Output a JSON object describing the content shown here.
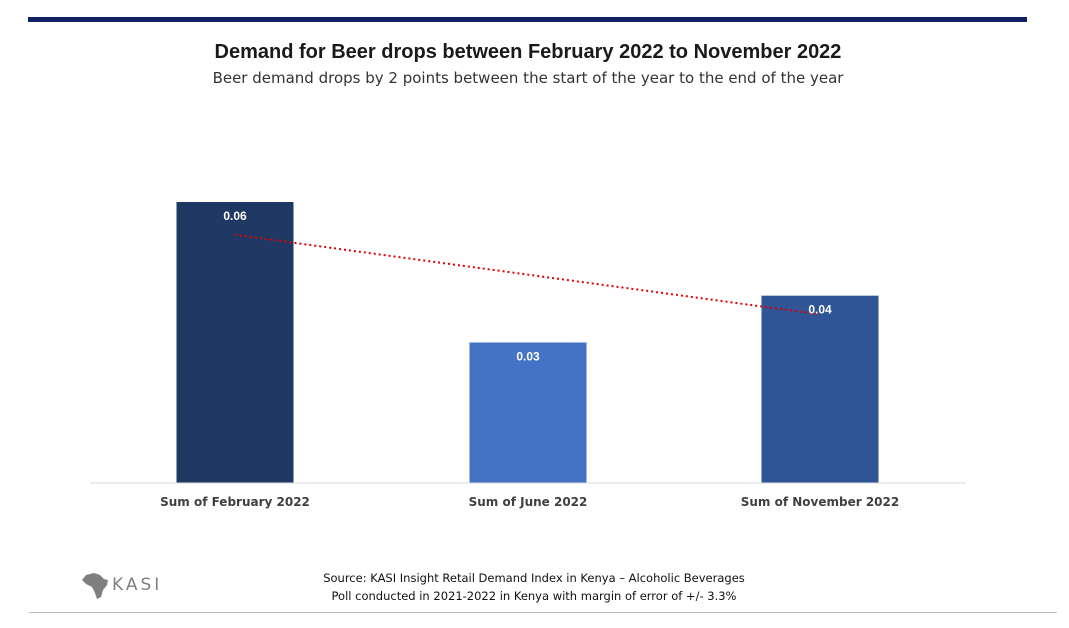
{
  "colors": {
    "top_bar": "#0f2160",
    "bar_february": "#1f3864",
    "bar_june": "#4472c4",
    "bar_november": "#2f5597",
    "trendline": "#e00000",
    "axis": "#d9d9d9"
  },
  "logo": {
    "icon": "africa-map-icon",
    "text": "KASI"
  },
  "source": {
    "line1": "Source: KASI Insight Retail Demand Index in Kenya – Alcoholic Beverages",
    "line2": "Poll conducted in 2021-2022 in Kenya with margin of error of +/- 3.3%"
  },
  "chart_data": {
    "type": "bar",
    "title": "Demand for Beer drops between February 2022 to November 2022",
    "subtitle": "Beer demand drops by 2 points between the start of the year to the end of the year",
    "xlabel": "",
    "ylabel": "",
    "categories": [
      "Sum of February 2022",
      "Sum of June 2022",
      "Sum of November 2022"
    ],
    "values": [
      0.06,
      0.03,
      0.04
    ],
    "data_labels": [
      "0.06",
      "0.03",
      "0.04"
    ],
    "ylim": [
      0,
      0.06
    ],
    "grid": false,
    "legend": "none",
    "trendline": {
      "style": "dotted",
      "type": "linear",
      "from_category": 0,
      "to_category": 2,
      "start_y": 0.053,
      "end_y": 0.036
    }
  }
}
